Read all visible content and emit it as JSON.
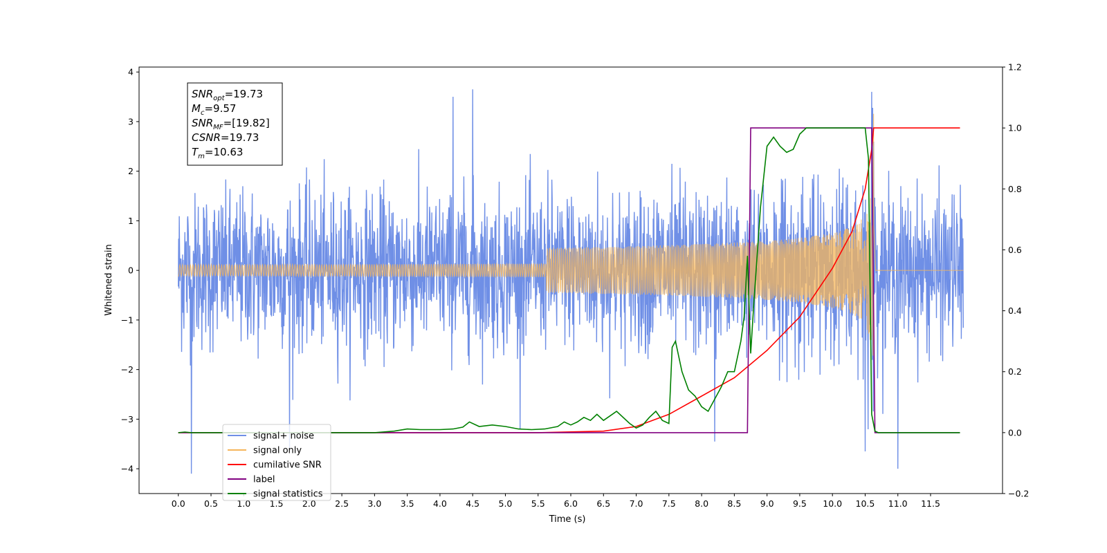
{
  "chart_data": {
    "type": "line",
    "title": "",
    "xlabel": "Time (s)",
    "ylabel_left": "Whitened strain",
    "ylabel_right": "",
    "xlim": [
      -0.6,
      12.6
    ],
    "ylim_left": [
      -4.5,
      4.1
    ],
    "ylim_right": [
      -0.2,
      1.2
    ],
    "x_ticks": [
      "0.0",
      "0.5",
      "1.0",
      "1.5",
      "2.0",
      "2.5",
      "3.0",
      "3.5",
      "4.0",
      "4.5",
      "5.0",
      "5.5",
      "6.0",
      "6.5",
      "7.0",
      "7.5",
      "8.0",
      "8.5",
      "9.0",
      "9.5",
      "10.0",
      "10.5",
      "11.0",
      "11.5"
    ],
    "y_ticks_left": [
      "−4",
      "−3",
      "−2",
      "−1",
      "0",
      "1",
      "2",
      "3",
      "4"
    ],
    "y_ticks_right": [
      "−0.2",
      "0.0",
      "0.2",
      "0.4",
      "0.6",
      "0.8",
      "1.0",
      "1.2"
    ],
    "grid": false,
    "legend_position": "lower-left",
    "colors": {
      "signal_noise": "#6f8fe6",
      "signal_only": "#f5b55a",
      "cumulative_snr": "#ff0000",
      "label": "#800080",
      "signal_statistics": "#008000"
    },
    "annotation": {
      "lines": [
        {
          "sym": "SNR",
          "sub": "opt",
          "val": "=19.73"
        },
        {
          "sym": "M",
          "sub": "c",
          "val": "=9.57"
        },
        {
          "sym": "SNR",
          "sub": "MF",
          "val": "=[19.82]"
        },
        {
          "sym": "CSNR",
          "sub": "",
          "val": "=19.73"
        },
        {
          "sym": "T",
          "sub": "m",
          "val": "=10.63"
        }
      ]
    },
    "series": [
      {
        "name": "signal+ noise",
        "axis": "left",
        "kind": "noise",
        "range": [
          0.0,
          12.0
        ],
        "typical_amplitude": 1.4,
        "extremes": [
          [
            0.2,
            -4.1
          ],
          [
            1.7,
            -3.6
          ],
          [
            4.5,
            3.65
          ],
          [
            8.2,
            -3.45
          ],
          [
            10.6,
            3.6
          ],
          [
            11.0,
            -4.0
          ],
          [
            10.5,
            -3.65
          ],
          [
            4.2,
            3.5
          ]
        ]
      },
      {
        "name": "signal only",
        "axis": "left",
        "kind": "chirp",
        "range": [
          0.0,
          12.0
        ],
        "merger_time": 10.63,
        "peak_amplitude": 3.2
      },
      {
        "name": "cumilative SNR",
        "axis": "right",
        "x": [
          0.0,
          5.5,
          6.5,
          7.0,
          7.5,
          8.0,
          8.5,
          9.0,
          9.5,
          10.0,
          10.3,
          10.5,
          10.6,
          10.63,
          10.65,
          11.95
        ],
        "y": [
          0.0,
          0.0,
          0.005,
          0.02,
          0.06,
          0.12,
          0.18,
          0.27,
          0.38,
          0.54,
          0.66,
          0.8,
          0.93,
          1.0,
          1.0,
          1.0
        ]
      },
      {
        "name": "label",
        "axis": "right",
        "x": [
          0.0,
          8.7,
          8.75,
          10.6,
          10.65,
          11.95
        ],
        "y": [
          0.0,
          0.0,
          1.0,
          1.0,
          0.0,
          0.0
        ]
      },
      {
        "name": "signal statistics",
        "axis": "right",
        "x": [
          0.0,
          0.1,
          0.2,
          2.0,
          3.0,
          3.3,
          3.5,
          3.7,
          4.0,
          4.2,
          4.35,
          4.45,
          4.6,
          4.8,
          5.0,
          5.2,
          5.4,
          5.6,
          5.8,
          5.9,
          6.0,
          6.1,
          6.2,
          6.3,
          6.4,
          6.5,
          6.7,
          6.9,
          7.0,
          7.1,
          7.2,
          7.3,
          7.4,
          7.5,
          7.55,
          7.6,
          7.7,
          7.8,
          7.9,
          8.0,
          8.1,
          8.2,
          8.3,
          8.4,
          8.5,
          8.6,
          8.65,
          8.7,
          8.75,
          8.8,
          8.9,
          9.0,
          9.1,
          9.2,
          9.25,
          9.3,
          9.4,
          9.5,
          9.6,
          9.7,
          10.0,
          10.5,
          10.55,
          10.6,
          10.65,
          10.7,
          10.8,
          11.95
        ],
        "y": [
          0.0,
          0.002,
          0.0,
          0.0,
          0.0,
          0.005,
          0.012,
          0.01,
          0.01,
          0.012,
          0.018,
          0.035,
          0.02,
          0.025,
          0.02,
          0.012,
          0.01,
          0.012,
          0.02,
          0.035,
          0.025,
          0.035,
          0.05,
          0.04,
          0.06,
          0.04,
          0.07,
          0.03,
          0.015,
          0.025,
          0.05,
          0.07,
          0.04,
          0.03,
          0.28,
          0.3,
          0.2,
          0.14,
          0.12,
          0.085,
          0.07,
          0.11,
          0.15,
          0.2,
          0.2,
          0.3,
          0.38,
          0.58,
          0.26,
          0.43,
          0.74,
          0.94,
          0.97,
          0.94,
          0.93,
          0.92,
          0.93,
          0.98,
          1.0,
          1.0,
          1.0,
          1.0,
          0.9,
          0.06,
          0.005,
          0.0,
          0.0,
          0.0
        ]
      }
    ]
  },
  "legend": {
    "items": [
      {
        "label": "signal+ noise",
        "color": "#6f8fe6"
      },
      {
        "label": "signal only",
        "color": "#f5b55a"
      },
      {
        "label": "cumilative SNR",
        "color": "#ff0000"
      },
      {
        "label": "label",
        "color": "#800080"
      },
      {
        "label": "signal statistics",
        "color": "#008000"
      }
    ]
  }
}
